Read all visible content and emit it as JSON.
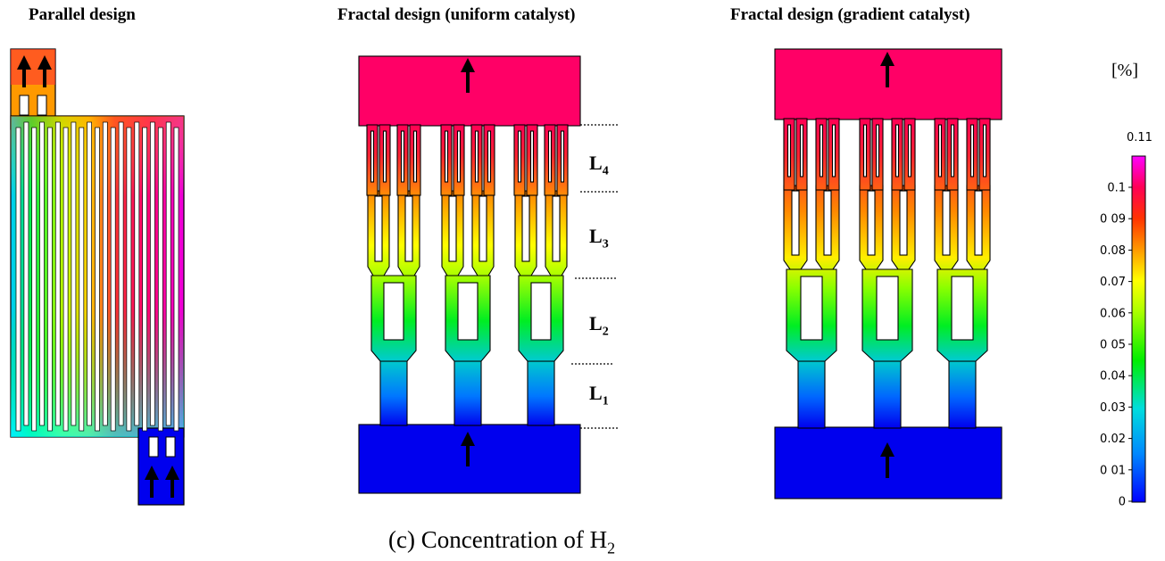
{
  "titles": {
    "parallel": "Parallel design",
    "fractal_uniform": "Fractal design (uniform catalyst)",
    "fractal_gradient": "Fractal design (gradient catalyst)"
  },
  "legend": {
    "unit": "[%]",
    "max_label": "0.11",
    "ticks": [
      "0.1",
      "0 09",
      "0.08",
      "0.07",
      "0.06",
      "0 05",
      "0.04",
      "0.03",
      "0.02",
      "0 01",
      "0"
    ],
    "colors": [
      "#ff00ff",
      "#ff0033",
      "#ff8800",
      "#ffff00",
      "#00ee00",
      "#00cccc",
      "#0044ff",
      "#0000ff"
    ]
  },
  "levels": {
    "l4": {
      "main": "L",
      "sub": "4"
    },
    "l3": {
      "main": "L",
      "sub": "3"
    },
    "l2": {
      "main": "L",
      "sub": "2"
    },
    "l1": {
      "main": "L",
      "sub": "1"
    }
  },
  "caption": {
    "main": "(c) Concentration of H",
    "sub": "2"
  }
}
